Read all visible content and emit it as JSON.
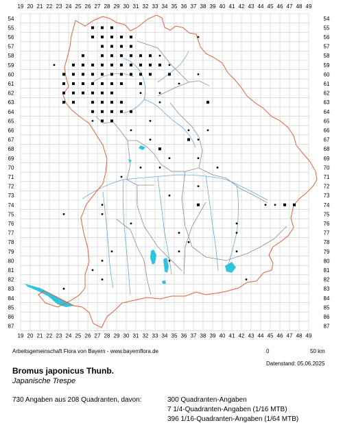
{
  "grid": {
    "x_labels": [
      "19",
      "20",
      "21",
      "22",
      "23",
      "24",
      "25",
      "26",
      "27",
      "28",
      "29",
      "30",
      "31",
      "32",
      "33",
      "34",
      "35",
      "36",
      "37",
      "38",
      "39",
      "40",
      "41",
      "42",
      "43",
      "44",
      "45",
      "46",
      "47",
      "48",
      "49"
    ],
    "y_labels": [
      "54",
      "55",
      "56",
      "57",
      "58",
      "59",
      "60",
      "61",
      "62",
      "63",
      "64",
      "65",
      "66",
      "67",
      "68",
      "69",
      "70",
      "71",
      "72",
      "73",
      "74",
      "75",
      "76",
      "77",
      "78",
      "79",
      "80",
      "81",
      "82",
      "83",
      "84",
      "85",
      "86",
      "87"
    ]
  },
  "colors": {
    "grid": "#c8c8c8",
    "state_border": "#e0603a",
    "district_border": "#8c8c8c",
    "rivers": "#6aa6d6",
    "lakes": "#2ec4e0",
    "dots": "#000000"
  },
  "map_data": {
    "square_records": [
      [
        26,
        55
      ],
      [
        27,
        55
      ],
      [
        28,
        55
      ],
      [
        26,
        56
      ],
      [
        27,
        56
      ],
      [
        28,
        56
      ],
      [
        29,
        56
      ],
      [
        30,
        56
      ],
      [
        27,
        57
      ],
      [
        28,
        57
      ],
      [
        29,
        57
      ],
      [
        30,
        57
      ],
      [
        25,
        58
      ],
      [
        27,
        58
      ],
      [
        28,
        58
      ],
      [
        29,
        58
      ],
      [
        30,
        58
      ],
      [
        31,
        58
      ],
      [
        32,
        58
      ],
      [
        24,
        59
      ],
      [
        25,
        59
      ],
      [
        26,
        59
      ],
      [
        27,
        59
      ],
      [
        28,
        59
      ],
      [
        29,
        59
      ],
      [
        30,
        59
      ],
      [
        31,
        59
      ],
      [
        32,
        59
      ],
      [
        33,
        59
      ],
      [
        23,
        60
      ],
      [
        24,
        60
      ],
      [
        25,
        60
      ],
      [
        26,
        60
      ],
      [
        27,
        60
      ],
      [
        28,
        60
      ],
      [
        29,
        60
      ],
      [
        30,
        60
      ],
      [
        31,
        60
      ],
      [
        32,
        60
      ],
      [
        23,
        61
      ],
      [
        24,
        61
      ],
      [
        25,
        61
      ],
      [
        26,
        61
      ],
      [
        27,
        61
      ],
      [
        28,
        61
      ],
      [
        29,
        61
      ],
      [
        31,
        61
      ],
      [
        23,
        62
      ],
      [
        24,
        62
      ],
      [
        25,
        62
      ],
      [
        26,
        62
      ],
      [
        27,
        62
      ],
      [
        28,
        62
      ],
      [
        23,
        63
      ],
      [
        24,
        63
      ],
      [
        26,
        63
      ],
      [
        27,
        63
      ],
      [
        28,
        63
      ],
      [
        29,
        63
      ],
      [
        26,
        64
      ],
      [
        27,
        64
      ],
      [
        28,
        64
      ],
      [
        29,
        64
      ],
      [
        30,
        64
      ],
      [
        27,
        65
      ],
      [
        28,
        65
      ],
      [
        37,
        74
      ],
      [
        46,
        74
      ],
      [
        47,
        74
      ],
      [
        33,
        68
      ],
      [
        34,
        60
      ],
      [
        36,
        67
      ],
      [
        38,
        63
      ]
    ],
    "subsquare_records": [
      [
        22,
        59
      ],
      [
        33,
        58
      ],
      [
        34,
        59
      ],
      [
        37,
        56
      ],
      [
        37,
        60
      ],
      [
        35,
        61
      ],
      [
        33,
        62
      ],
      [
        30,
        66
      ],
      [
        32,
        67
      ],
      [
        37,
        67
      ],
      [
        38,
        66
      ],
      [
        37,
        69
      ],
      [
        31,
        70
      ],
      [
        33,
        70
      ],
      [
        34,
        69
      ],
      [
        39,
        70
      ],
      [
        29,
        71
      ],
      [
        34,
        73
      ],
      [
        23,
        75
      ],
      [
        27,
        75
      ],
      [
        30,
        76
      ],
      [
        41,
        76
      ],
      [
        41,
        77
      ],
      [
        35,
        77
      ],
      [
        36,
        78
      ],
      [
        35,
        79
      ],
      [
        41,
        79
      ],
      [
        27,
        80
      ],
      [
        28,
        79
      ],
      [
        34,
        80
      ],
      [
        26,
        81
      ],
      [
        27,
        82
      ],
      [
        23,
        83
      ],
      [
        42,
        82
      ],
      [
        32,
        65
      ],
      [
        26,
        65
      ],
      [
        33,
        63
      ],
      [
        31,
        62
      ],
      [
        37,
        72
      ],
      [
        36,
        66
      ],
      [
        24,
        62
      ],
      [
        44,
        74
      ],
      [
        45,
        74
      ],
      [
        27,
        74
      ]
    ]
  },
  "legend": {
    "scale_start": "0",
    "scale_end": "50 km"
  },
  "texts": {
    "credit": "Arbeitsgemeinschaft Flora von Bayern - www.bayernflora.de",
    "date": "Datenstand: 05.06.2025",
    "scientific_name": "Bromus japonicus Thunb.",
    "common_name": "Japanische Trespe",
    "summary": "730 Angaben aus 208 Quadranten, davon:",
    "quad_line_1": "300 Quadranten-Angaben",
    "quad_line_2": "7 1/4-Quadranten-Angaben (1/16 MTB)",
    "quad_line_3": "396 1/16-Quadranten-Angaben (1/64 MTB)"
  }
}
